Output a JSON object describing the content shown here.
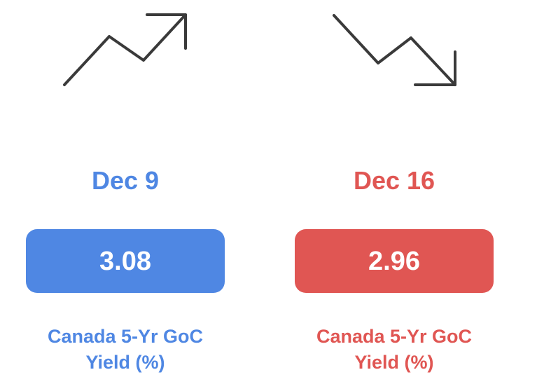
{
  "theme": {
    "up_color": "#4f87e3",
    "down_color": "#e05653",
    "icon_color": "#3a3a3a"
  },
  "cards": [
    {
      "icon": "trend-up-arrow-icon",
      "date": "Dec 9",
      "value": "3.08",
      "caption_line1": "Canada 5-Yr GoC",
      "caption_line2": "Yield (%)"
    },
    {
      "icon": "trend-down-arrow-icon",
      "date": "Dec 16",
      "value": "2.96",
      "caption_line1": "Canada 5-Yr GoC",
      "caption_line2": "Yield (%)"
    }
  ]
}
